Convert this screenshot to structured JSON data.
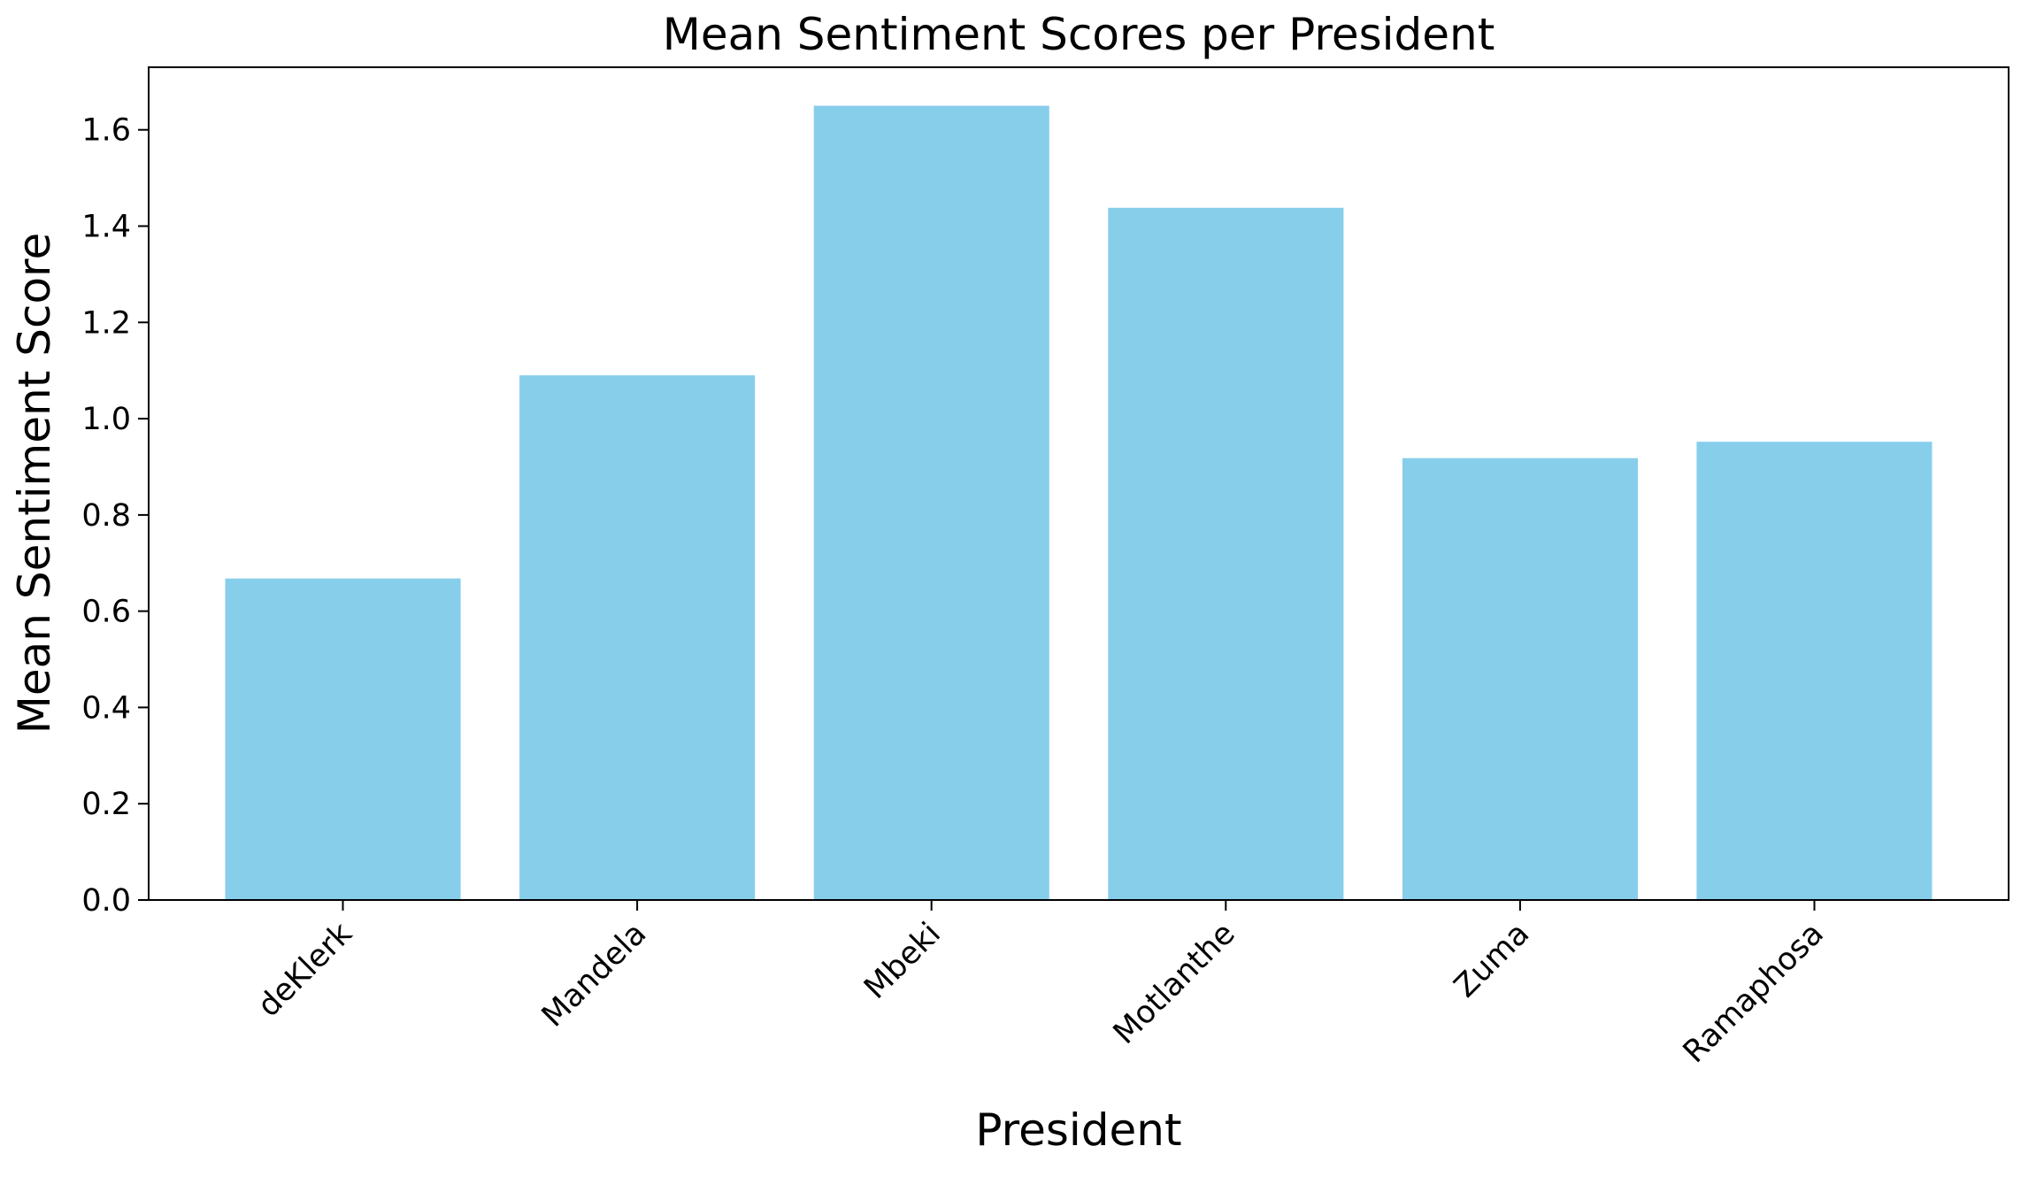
{
  "chart_data": {
    "type": "bar",
    "title": "Mean Sentiment Scores per President",
    "xlabel": "President",
    "ylabel": "Mean Sentiment Score",
    "categories": [
      "deKlerk",
      "Mandela",
      "Mbeki",
      "Motlanthe",
      "Zuma",
      "Ramaphosa"
    ],
    "values": [
      0.668,
      1.09,
      1.65,
      1.438,
      0.918,
      0.952
    ],
    "ylim": [
      0,
      1.73
    ],
    "yticks": [
      0.0,
      0.2,
      0.4,
      0.6,
      0.8,
      1.0,
      1.2,
      1.4,
      1.6
    ],
    "ytick_labels": [
      "0.0",
      "0.2",
      "0.4",
      "0.6",
      "0.8",
      "1.0",
      "1.2",
      "1.4",
      "1.6"
    ],
    "grid": false,
    "bar_color": "#87CEEB",
    "xtick_rotation_deg": 45
  }
}
